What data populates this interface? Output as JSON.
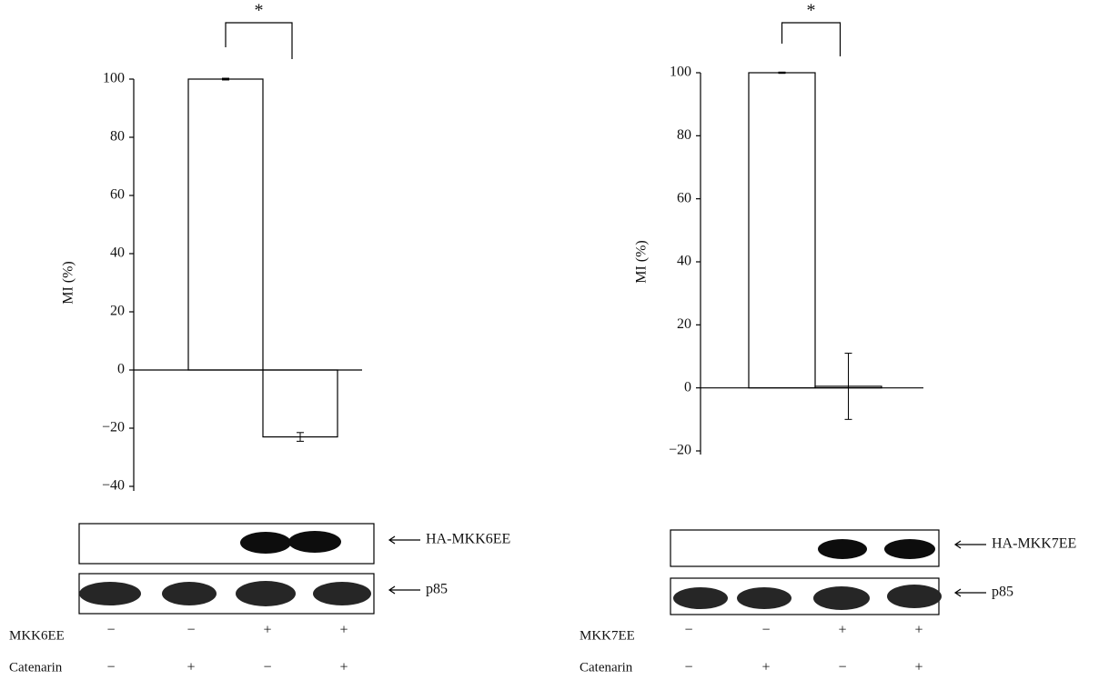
{
  "chart_data": [
    {
      "type": "bar",
      "y_label": "MI (%)",
      "annotation": "*",
      "categories": [
        null,
        null
      ],
      "values": [
        100,
        -23
      ],
      "errors": [
        0.3,
        1.5
      ],
      "color": "#ffffff",
      "ylim": [
        -40,
        100
      ],
      "yticks": [
        {
          "value": -40,
          "label": "−40"
        },
        {
          "value": -20,
          "label": "−20"
        },
        0,
        20,
        40,
        60,
        80,
        100
      ],
      "blot_labels": [
        "HA-MKK6EE",
        "p85"
      ],
      "conditions": [
        {
          "label": "MKK6EE",
          "values": [
            "−",
            "−",
            "+",
            "+"
          ]
        },
        {
          "label": "Catenarin",
          "values": [
            "−",
            "+",
            "−",
            "+"
          ]
        }
      ]
    },
    {
      "type": "bar",
      "y_label": "MI (%)",
      "annotation": "*",
      "categories": [
        null,
        null
      ],
      "values": [
        100,
        0.5
      ],
      "errors": [
        0.2,
        10.5
      ],
      "color": "#ffffff",
      "ylim": [
        -20,
        100
      ],
      "yticks": [
        {
          "value": -20,
          "label": "−20"
        },
        0,
        20,
        40,
        60,
        80,
        100
      ],
      "blot_labels": [
        "HA-MKK7EE",
        "p85"
      ],
      "conditions": [
        {
          "label": "MKK7EE",
          "values": [
            "−",
            "−",
            "+",
            "+"
          ]
        },
        {
          "label": "Catenarin",
          "values": [
            "−",
            "+",
            "−",
            "+"
          ]
        }
      ]
    }
  ]
}
